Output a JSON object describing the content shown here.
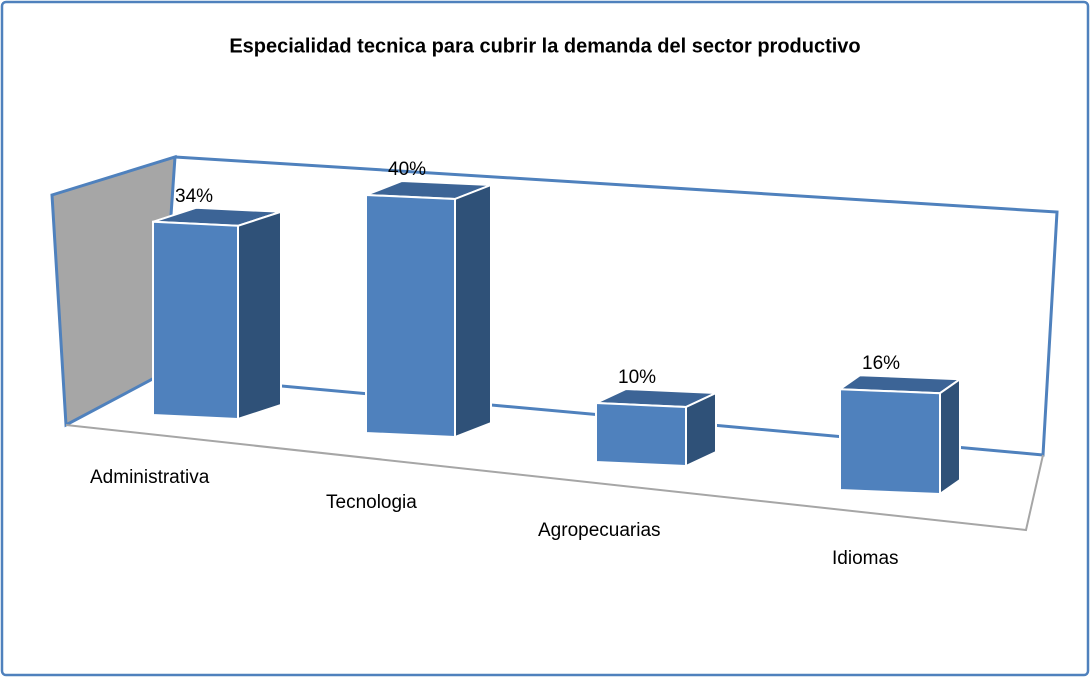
{
  "chart_data": {
    "type": "bar",
    "title": "Especialidad tecnica para cubrir la demanda del sector productivo",
    "categories": [
      "Administrativa",
      "Tecnologia",
      "Agropecuarias",
      "Idiomas"
    ],
    "values": [
      34,
      40,
      10,
      16
    ],
    "value_labels": [
      "34%",
      "40%",
      "10%",
      "16%"
    ],
    "color": "#4f81bd"
  }
}
